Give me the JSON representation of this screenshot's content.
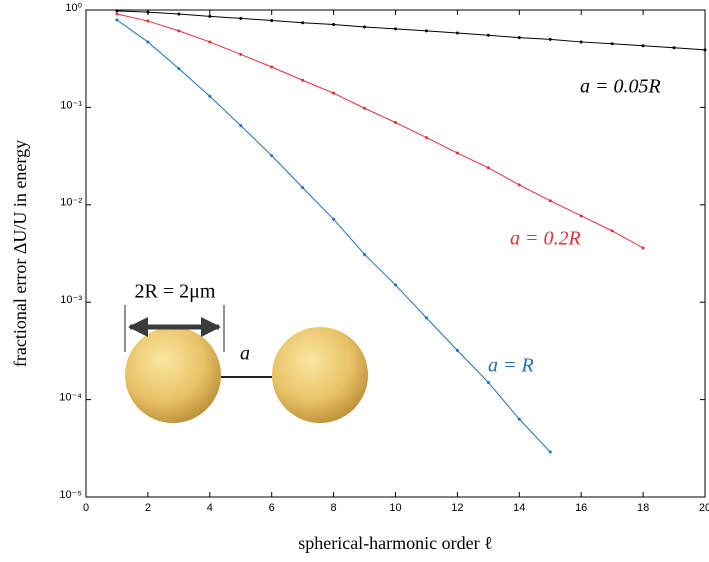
{
  "chart_data": {
    "type": "line",
    "log_y": true,
    "xlabel": "spherical-harmonic order ℓ",
    "ylabel": "fractional error ΔU/U in energy",
    "xlim": [
      0,
      20
    ],
    "ylim": [
      1e-05,
      1
    ],
    "xticks": [
      0,
      2,
      4,
      6,
      8,
      10,
      12,
      14,
      16,
      18,
      20
    ],
    "yticks": [
      {
        "value": 1e-05,
        "label": "10⁻⁵"
      },
      {
        "value": 0.0001,
        "label": "10⁻⁴"
      },
      {
        "value": 0.001,
        "label": "10⁻³"
      },
      {
        "value": 0.01,
        "label": "10⁻²"
      },
      {
        "value": 0.1,
        "label": "10⁻¹"
      },
      {
        "value": 1,
        "label": "10⁰"
      }
    ],
    "series": [
      {
        "name": "a = 0.05R",
        "color": "#000000",
        "x": [
          1,
          2,
          3,
          4,
          5,
          6,
          7,
          8,
          9,
          10,
          11,
          12,
          13,
          14,
          15,
          16,
          17,
          18,
          19,
          20
        ],
        "values": [
          0.98,
          0.95,
          0.91,
          0.86,
          0.82,
          0.78,
          0.74,
          0.71,
          0.67,
          0.64,
          0.61,
          0.58,
          0.55,
          0.52,
          0.5,
          0.47,
          0.45,
          0.43,
          0.41,
          0.39
        ]
      },
      {
        "name": "a = 0.2R",
        "color": "#e0303a",
        "x": [
          1,
          2,
          3,
          4,
          5,
          6,
          7,
          8,
          9,
          10,
          11,
          12,
          13,
          14,
          15,
          16,
          17,
          18
        ],
        "values": [
          0.91,
          0.77,
          0.61,
          0.47,
          0.35,
          0.26,
          0.19,
          0.14,
          0.098,
          0.07,
          0.049,
          0.034,
          0.024,
          0.016,
          0.011,
          0.0077,
          0.0054,
          0.0036
        ]
      },
      {
        "name": "a = R",
        "color": "#1f6fb8",
        "x": [
          1,
          2,
          3,
          4,
          5,
          6,
          7,
          8,
          9,
          10,
          11,
          12,
          13,
          14,
          15
        ],
        "values": [
          0.79,
          0.47,
          0.25,
          0.13,
          0.065,
          0.032,
          0.015,
          0.0071,
          0.0031,
          0.0015,
          0.00069,
          0.00032,
          0.00015,
          6.3e-05,
          2.9e-05
        ]
      }
    ],
    "annotations": [
      "2R = 2μm",
      "a"
    ]
  }
}
